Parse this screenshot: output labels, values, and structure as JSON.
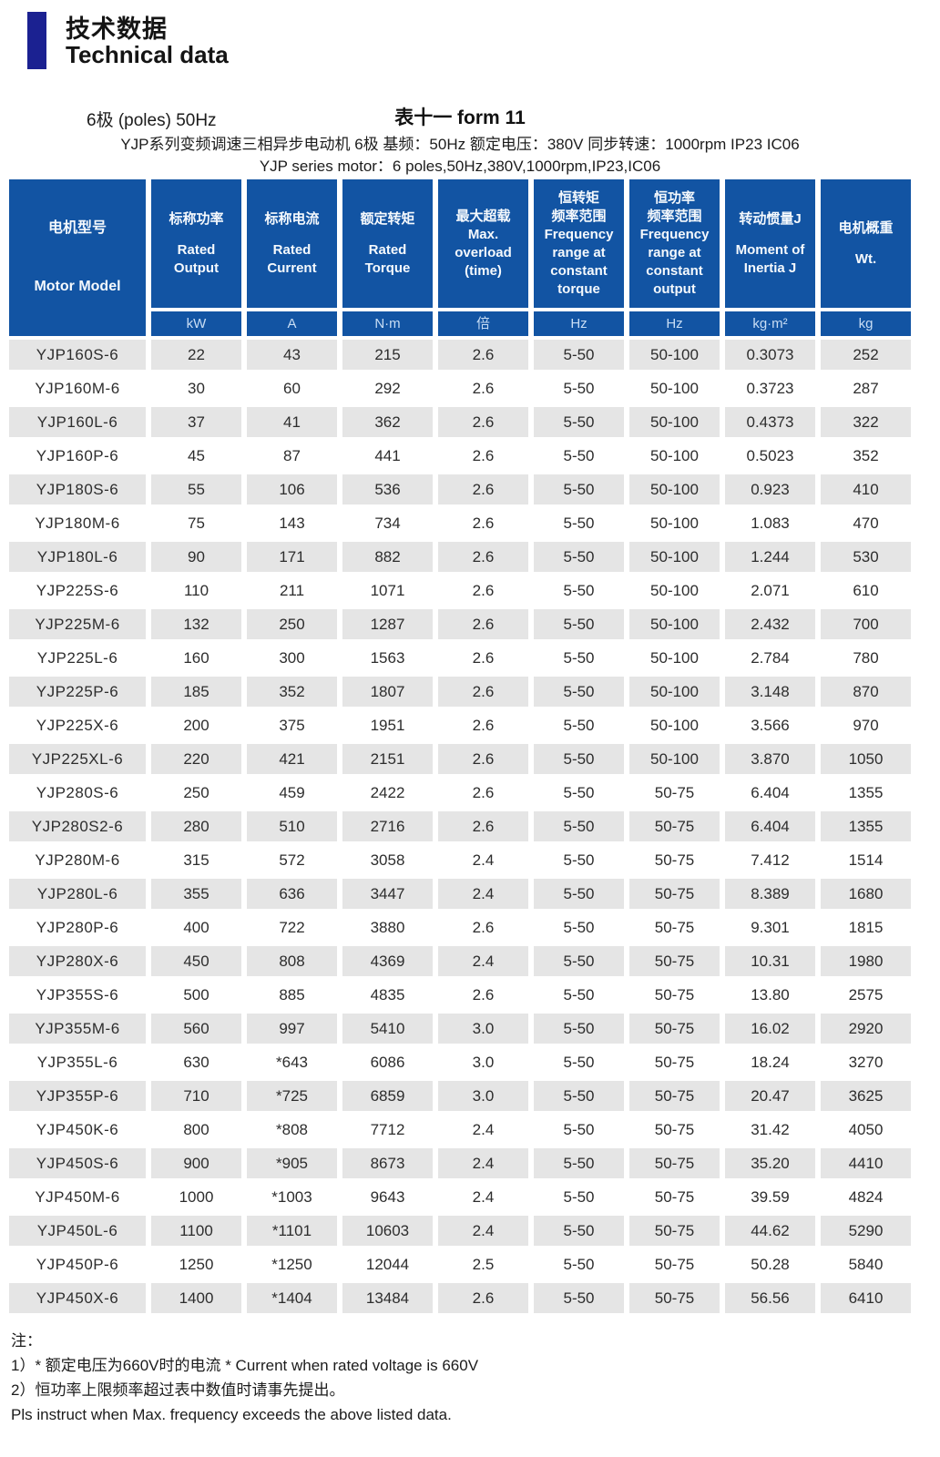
{
  "colors": {
    "header_blue": "#1254a3",
    "accent_navy": "#1b2191",
    "stripe_gray": "#e5e5e5",
    "unit_text": "#c9def5"
  },
  "header": {
    "title_zh": "技术数据",
    "title_en": "Technical data",
    "subtitle_left": "6极 (poles) 50Hz",
    "subtitle_right": "表十一 form 11",
    "desc_zh": "YJP系列变频调速三相异步电动机 6极 基频：50Hz 额定电压：380V 同步转速：1000rpm IP23 IC06",
    "desc_en": "YJP series motor：6 poles,50Hz,380V,1000rpm,IP23,IC06"
  },
  "table": {
    "columns": [
      {
        "zh": "电机型号",
        "en": "Motor Model",
        "unit": ""
      },
      {
        "zh": "标称功率",
        "en": "Rated Output",
        "unit": "kW"
      },
      {
        "zh": "标称电流",
        "en": "Rated Current",
        "unit": "A"
      },
      {
        "zh": "额定转矩",
        "en": "Rated Torque",
        "unit": "N·m"
      },
      {
        "zh": "最大超载",
        "en": "Max. overload (time)",
        "unit": "倍"
      },
      {
        "zh": "恒转矩\n频率范围",
        "en": "Frequency range at constant torque",
        "unit": "Hz"
      },
      {
        "zh": "恒功率\n频率范围",
        "en": "Frequency range at constant output",
        "unit": "Hz"
      },
      {
        "zh": "转动惯量J",
        "en": "Moment of Inertia J",
        "unit": "kg·m²"
      },
      {
        "zh": "电机概重",
        "en": "Wt.",
        "unit": "kg"
      }
    ],
    "rows": [
      [
        "YJP160S-6",
        "22",
        "43",
        "215",
        "2.6",
        "5-50",
        "50-100",
        "0.3073",
        "252"
      ],
      [
        "YJP160M-6",
        "30",
        "60",
        "292",
        "2.6",
        "5-50",
        "50-100",
        "0.3723",
        "287"
      ],
      [
        "YJP160L-6",
        "37",
        "41",
        "362",
        "2.6",
        "5-50",
        "50-100",
        "0.4373",
        "322"
      ],
      [
        "YJP160P-6",
        "45",
        "87",
        "441",
        "2.6",
        "5-50",
        "50-100",
        "0.5023",
        "352"
      ],
      [
        "YJP180S-6",
        "55",
        "106",
        "536",
        "2.6",
        "5-50",
        "50-100",
        "0.923",
        "410"
      ],
      [
        "YJP180M-6",
        "75",
        "143",
        "734",
        "2.6",
        "5-50",
        "50-100",
        "1.083",
        "470"
      ],
      [
        "YJP180L-6",
        "90",
        "171",
        "882",
        "2.6",
        "5-50",
        "50-100",
        "1.244",
        "530"
      ],
      [
        "YJP225S-6",
        "110",
        "211",
        "1071",
        "2.6",
        "5-50",
        "50-100",
        "2.071",
        "610"
      ],
      [
        "YJP225M-6",
        "132",
        "250",
        "1287",
        "2.6",
        "5-50",
        "50-100",
        "2.432",
        "700"
      ],
      [
        "YJP225L-6",
        "160",
        "300",
        "1563",
        "2.6",
        "5-50",
        "50-100",
        "2.784",
        "780"
      ],
      [
        "YJP225P-6",
        "185",
        "352",
        "1807",
        "2.6",
        "5-50",
        "50-100",
        "3.148",
        "870"
      ],
      [
        "YJP225X-6",
        "200",
        "375",
        "1951",
        "2.6",
        "5-50",
        "50-100",
        "3.566",
        "970"
      ],
      [
        "YJP225XL-6",
        "220",
        "421",
        "2151",
        "2.6",
        "5-50",
        "50-100",
        "3.870",
        "1050"
      ],
      [
        "YJP280S-6",
        "250",
        "459",
        "2422",
        "2.6",
        "5-50",
        "50-75",
        "6.404",
        "1355"
      ],
      [
        "YJP280S2-6",
        "280",
        "510",
        "2716",
        "2.6",
        "5-50",
        "50-75",
        "6.404",
        "1355"
      ],
      [
        "YJP280M-6",
        "315",
        "572",
        "3058",
        "2.4",
        "5-50",
        "50-75",
        "7.412",
        "1514"
      ],
      [
        "YJP280L-6",
        "355",
        "636",
        "3447",
        "2.4",
        "5-50",
        "50-75",
        "8.389",
        "1680"
      ],
      [
        "YJP280P-6",
        "400",
        "722",
        "3880",
        "2.6",
        "5-50",
        "50-75",
        "9.301",
        "1815"
      ],
      [
        "YJP280X-6",
        "450",
        "808",
        "4369",
        "2.4",
        "5-50",
        "50-75",
        "10.31",
        "1980"
      ],
      [
        "YJP355S-6",
        "500",
        "885",
        "4835",
        "2.6",
        "5-50",
        "50-75",
        "13.80",
        "2575"
      ],
      [
        "YJP355M-6",
        "560",
        "997",
        "5410",
        "3.0",
        "5-50",
        "50-75",
        "16.02",
        "2920"
      ],
      [
        "YJP355L-6",
        "630",
        "*643",
        "6086",
        "3.0",
        "5-50",
        "50-75",
        "18.24",
        "3270"
      ],
      [
        "YJP355P-6",
        "710",
        "*725",
        "6859",
        "3.0",
        "5-50",
        "50-75",
        "20.47",
        "3625"
      ],
      [
        "YJP450K-6",
        "800",
        "*808",
        "7712",
        "2.4",
        "5-50",
        "50-75",
        "31.42",
        "4050"
      ],
      [
        "YJP450S-6",
        "900",
        "*905",
        "8673",
        "2.4",
        "5-50",
        "50-75",
        "35.20",
        "4410"
      ],
      [
        "YJP450M-6",
        "1000",
        "*1003",
        "9643",
        "2.4",
        "5-50",
        "50-75",
        "39.59",
        "4824"
      ],
      [
        "YJP450L-6",
        "1100",
        "*1101",
        "10603",
        "2.4",
        "5-50",
        "50-75",
        "44.62",
        "5290"
      ],
      [
        "YJP450P-6",
        "1250",
        "*1250",
        "12044",
        "2.5",
        "5-50",
        "50-75",
        "50.28",
        "5840"
      ],
      [
        "YJP450X-6",
        "1400",
        "*1404",
        "13484",
        "2.6",
        "5-50",
        "50-75",
        "56.56",
        "6410"
      ]
    ]
  },
  "notes": {
    "label": "注：",
    "line1": "1）* 额定电压为660V时的电流   * Current when rated voltage is 660V",
    "line2": "2）恒功率上限频率超过表中数值时请事先提出。",
    "line3": "Pls instruct when Max. frequency exceeds the above listed data."
  }
}
